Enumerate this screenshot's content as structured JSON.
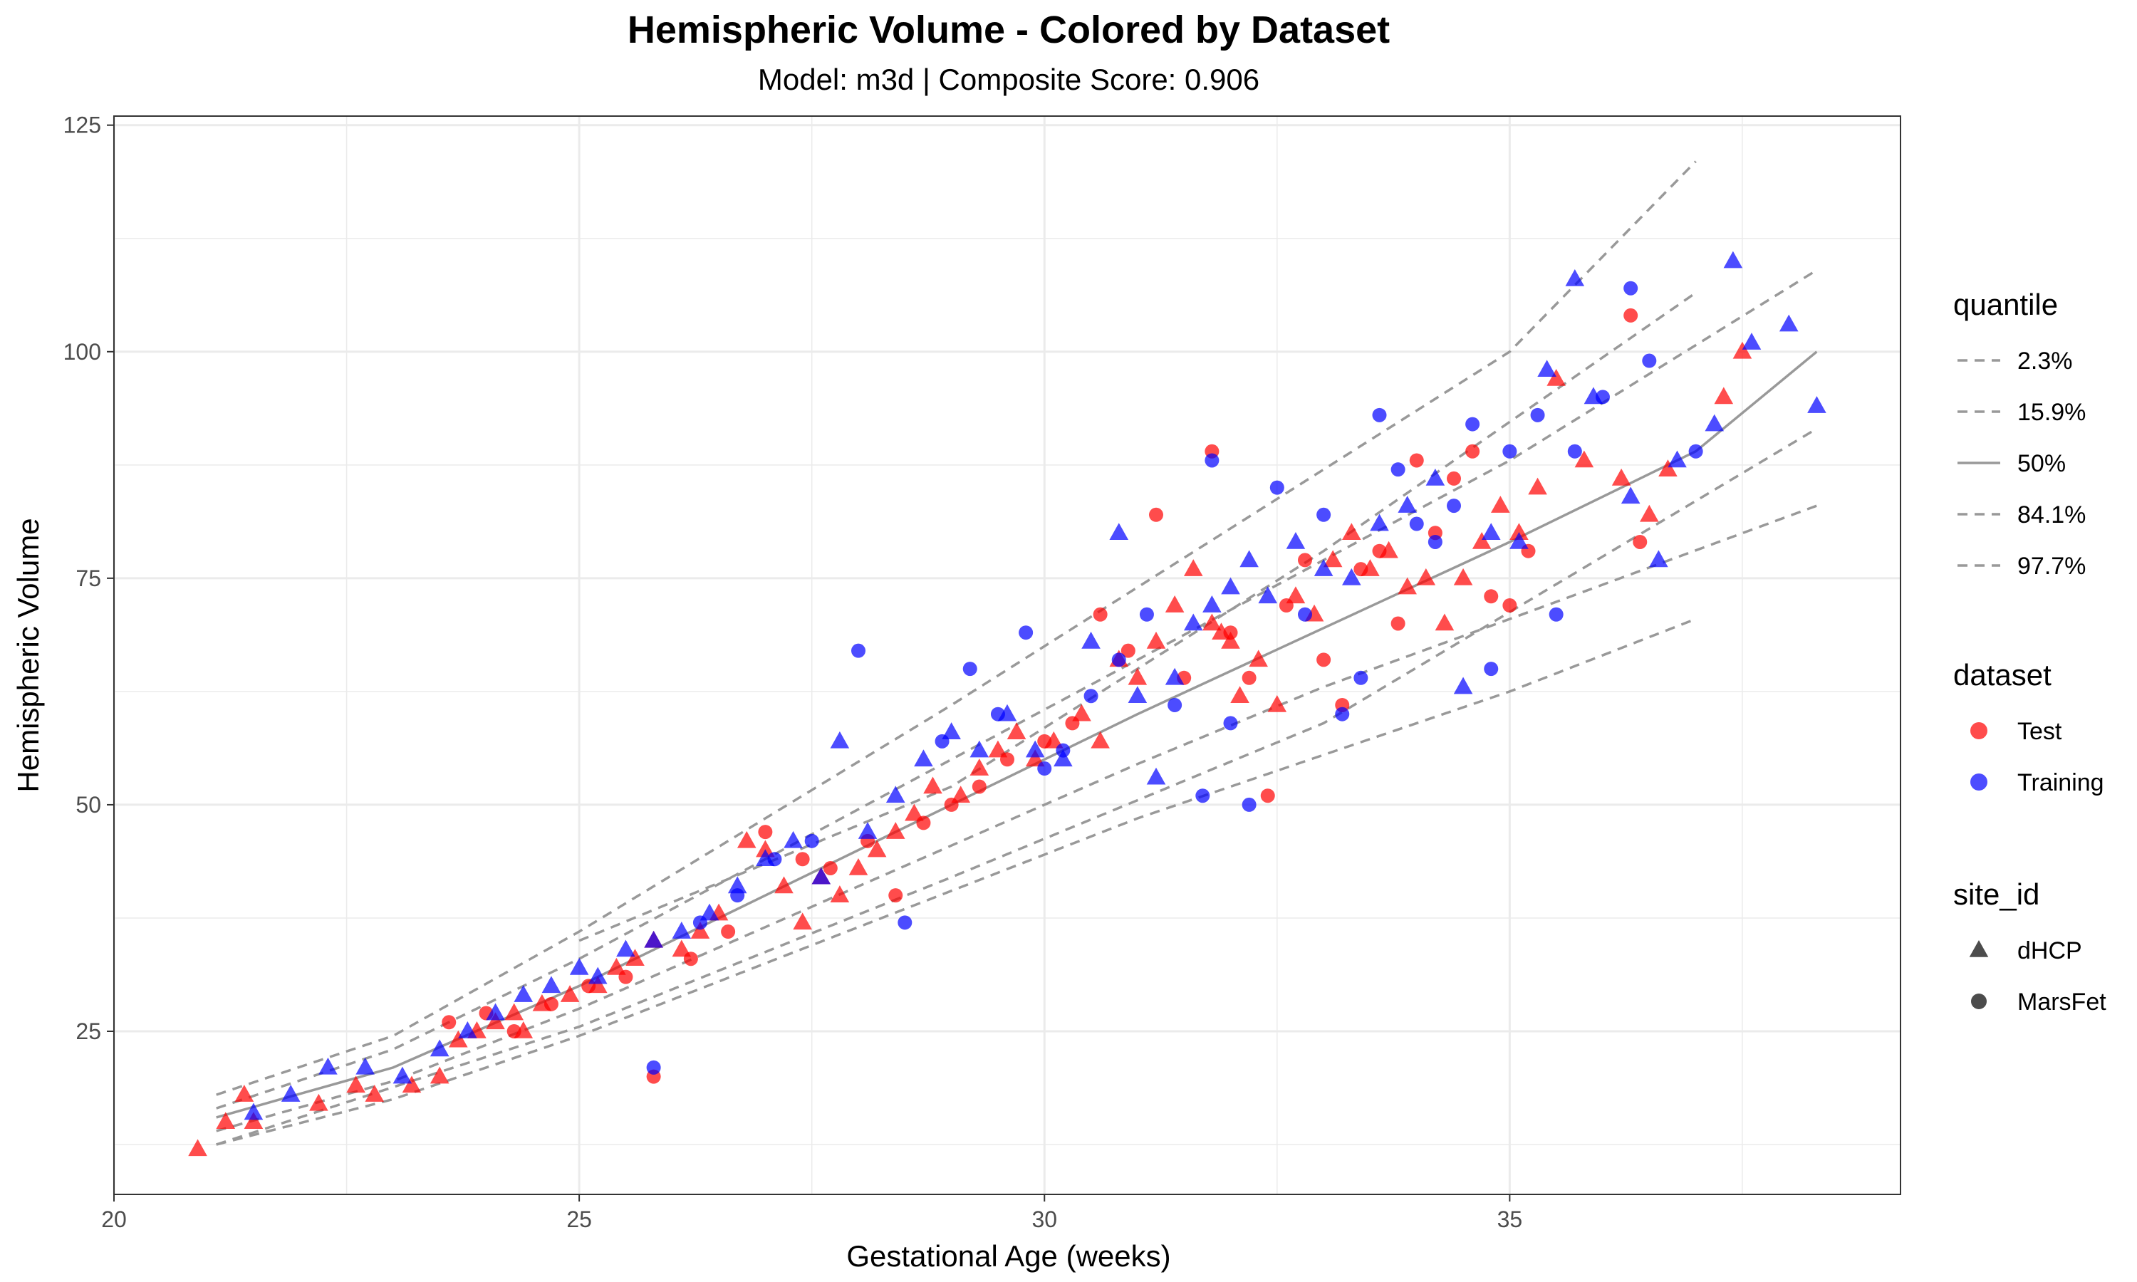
{
  "chart_data": {
    "type": "scatter",
    "title": "Hemispheric Volume - Colored by Dataset",
    "subtitle": "Model: m3d | Composite Score: 0.906",
    "xlabel": "Gestational Age (weeks)",
    "ylabel": "Hemispheric Volume",
    "xlim": [
      20,
      39.2
    ],
    "ylim": [
      7,
      126
    ],
    "x_ticks": [
      20,
      25,
      30,
      35
    ],
    "y_ticks": [
      25,
      50,
      75,
      100,
      125
    ],
    "grid": true,
    "colors": {
      "Test": "#ff0000",
      "Training": "#0000ff",
      "quantile_line": "#999999",
      "panel_border": "#333333",
      "grid": "#ebebeb"
    },
    "legends": [
      {
        "title": "quantile",
        "items": [
          "2.3%",
          "15.9%",
          "50%",
          "84.1%",
          "97.7%"
        ]
      },
      {
        "title": "dataset",
        "items": [
          "Test",
          "Training"
        ]
      },
      {
        "title": "site_id",
        "items": [
          "dHCP",
          "MarsFet"
        ]
      }
    ],
    "legend_placement": "right",
    "quantile_curves": [
      {
        "name": "2.3%",
        "style": "dashed",
        "x": [
          21.1,
          23,
          25,
          27,
          29,
          31,
          33,
          35,
          37
        ],
        "y": [
          12.5,
          17.5,
          24.5,
          32.5,
          40.5,
          48.5,
          55.5,
          62.5,
          70.5
        ]
      },
      {
        "name": "15.9%",
        "style": "dashed",
        "x": [
          21.1,
          23,
          25,
          27,
          29,
          31,
          33,
          35,
          38.3
        ],
        "y": [
          14,
          19.5,
          27.5,
          36.5,
          45.5,
          54.5,
          63,
          70.5,
          83
        ]
      },
      {
        "name": "50%",
        "style": "solid",
        "x": [
          21.1,
          23,
          25,
          27,
          29,
          31,
          33,
          35,
          37,
          38.3
        ],
        "y": [
          15.5,
          21,
          30,
          40,
          50,
          60,
          69.5,
          79,
          89,
          100
        ]
      },
      {
        "name": "84.1%",
        "style": "dashed",
        "x": [
          21.1,
          23,
          25,
          27,
          29,
          31,
          33,
          35,
          38.3
        ],
        "y": [
          16.5,
          23,
          33,
          44,
          55,
          66,
          77,
          88,
          109
        ]
      },
      {
        "name": "97.7%",
        "style": "dashed",
        "x": [
          21.1,
          23,
          25,
          27,
          29,
          31,
          33,
          35,
          37
        ],
        "y": [
          18,
          24.5,
          36,
          48.5,
          61,
          74,
          87,
          100,
          121
        ]
      },
      {
        "name": "outer-low",
        "style": "dashed",
        "x": [
          21.1,
          25,
          29,
          33,
          38.3
        ],
        "y": [
          12.5,
          25.5,
          42,
          59,
          91.5
        ]
      },
      {
        "name": "outer-high",
        "style": "dashed",
        "x": [
          25,
          29,
          33,
          37
        ],
        "y": [
          35,
          52,
          78,
          106.5
        ]
      }
    ],
    "series": [
      {
        "name": "Test",
        "site_id": "dHCP",
        "x": [
          20.9,
          21.2,
          21.4,
          21.5,
          22.2,
          22.6,
          22.8,
          23.2,
          23.5,
          23.7,
          23.9,
          24.1,
          24.3,
          24.4,
          24.6,
          24.9,
          25.2,
          25.4,
          25.6,
          25.8,
          26.1,
          26.3,
          26.5,
          26.8,
          27,
          27.2,
          27.4,
          27.6,
          27.8,
          28,
          28.2,
          28.4,
          28.6,
          28.8,
          29.1,
          29.3,
          29.5,
          29.7,
          29.9,
          30.1,
          30.4,
          30.6,
          30.8,
          31,
          31.2,
          31.4,
          31.6,
          31.8,
          31.9,
          32,
          32.1,
          32.3,
          32.5,
          32.7,
          32.9,
          33.1,
          33.3,
          33.5,
          33.7,
          33.9,
          34.1,
          34.3,
          34.5,
          34.7,
          34.9,
          35.1,
          35.3,
          35.5,
          35.8,
          36.2,
          36.5,
          36.7,
          37.3,
          37.5
        ],
        "y": [
          12,
          15,
          18,
          15,
          17,
          19,
          18,
          19,
          20,
          24,
          25,
          26,
          27,
          25,
          28,
          29,
          30,
          32,
          33,
          35,
          34,
          36,
          38,
          46,
          45,
          41,
          37,
          42,
          40,
          43,
          45,
          47,
          49,
          52,
          51,
          54,
          56,
          58,
          55,
          57,
          60,
          57,
          66,
          64,
          68,
          72,
          76,
          70,
          69,
          68,
          62,
          66,
          61,
          73,
          71,
          77,
          80,
          76,
          78,
          74,
          75,
          70,
          75,
          79,
          83,
          80,
          85,
          97,
          88,
          86,
          82,
          87,
          95,
          100
        ]
      },
      {
        "name": "Test",
        "site_id": "MarsFet",
        "x": [
          23.6,
          24,
          24.3,
          24.7,
          25.1,
          25.5,
          25.8,
          26.2,
          26.6,
          27,
          27.4,
          27.7,
          28.1,
          28.4,
          28.7,
          29,
          29.3,
          29.6,
          30,
          30.3,
          30.6,
          30.9,
          31.2,
          31.5,
          31.8,
          32,
          32.2,
          32.4,
          32.6,
          32.8,
          33,
          33.2,
          33.4,
          33.6,
          33.8,
          34,
          34.2,
          34.4,
          34.6,
          34.8,
          35,
          35.2,
          36.3,
          36.4
        ],
        "y": [
          26,
          27,
          25,
          28,
          30,
          31,
          20,
          33,
          36,
          47,
          44,
          43,
          46,
          40,
          48,
          50,
          52,
          55,
          57,
          59,
          71,
          67,
          82,
          64,
          89,
          69,
          64,
          51,
          72,
          77,
          66,
          61,
          76,
          78,
          70,
          88,
          80,
          86,
          89,
          73,
          72,
          78,
          104,
          79
        ]
      },
      {
        "name": "Training",
        "site_id": "dHCP",
        "x": [
          21.5,
          21.9,
          22.3,
          22.7,
          23.1,
          23.5,
          23.8,
          24.1,
          24.4,
          24.7,
          25,
          25.2,
          25.5,
          25.8,
          26.1,
          26.4,
          26.7,
          27,
          27.3,
          27.6,
          27.8,
          28.1,
          28.4,
          28.7,
          29,
          29.3,
          29.6,
          29.9,
          30.2,
          30.5,
          30.8,
          31,
          31.2,
          31.4,
          31.6,
          31.8,
          32,
          32.2,
          32.4,
          32.7,
          33,
          33.3,
          33.6,
          33.9,
          34.2,
          34.5,
          34.8,
          35.1,
          35.4,
          35.7,
          35.9,
          36.3,
          36.6,
          36.8,
          37.2,
          37.4,
          37.6,
          38,
          38.3
        ],
        "y": [
          16,
          18,
          21,
          21,
          20,
          23,
          25,
          27,
          29,
          30,
          32,
          31,
          34,
          35,
          36,
          38,
          41,
          44,
          46,
          42,
          57,
          47,
          51,
          55,
          58,
          56,
          60,
          56,
          55,
          68,
          80,
          62,
          53,
          64,
          70,
          72,
          74,
          77,
          73,
          79,
          76,
          75,
          81,
          83,
          86,
          63,
          80,
          79,
          98,
          108,
          95,
          84,
          77,
          88,
          92,
          110,
          101,
          103,
          94
        ]
      },
      {
        "name": "Training",
        "site_id": "MarsFet",
        "x": [
          25.8,
          26.3,
          26.7,
          27.1,
          27.5,
          28,
          28.5,
          28.9,
          29.2,
          29.5,
          29.8,
          30,
          30.2,
          30.5,
          30.8,
          31.1,
          31.4,
          31.7,
          31.8,
          32,
          32.2,
          32.5,
          32.8,
          33,
          33.2,
          33.4,
          33.6,
          33.8,
          34,
          34.2,
          34.4,
          34.6,
          34.8,
          35,
          35.3,
          35.5,
          35.7,
          36,
          36.3,
          36.5,
          37
        ],
        "y": [
          21,
          37,
          40,
          44,
          46,
          67,
          37,
          57,
          65,
          60,
          69,
          54,
          56,
          62,
          66,
          71,
          61,
          51,
          88,
          59,
          50,
          85,
          71,
          82,
          60,
          64,
          93,
          87,
          81,
          79,
          83,
          92,
          65,
          89,
          93,
          71,
          89,
          95,
          107,
          99,
          89
        ]
      }
    ]
  }
}
